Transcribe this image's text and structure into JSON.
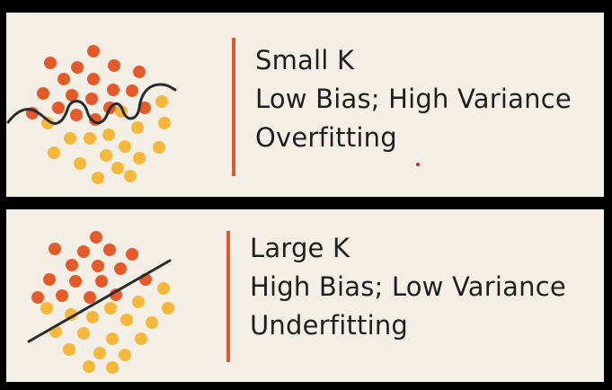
{
  "colors": {
    "background": "#000000",
    "panel": "#f3efe6",
    "accent": "#e0582f",
    "class_a": "#e55a2b",
    "class_b": "#f6b83a",
    "boundary": "#2b2b2b",
    "cursor_dot": "#d81e1e"
  },
  "panels": [
    {
      "lines": [
        "Small K",
        "Low Bias; High Variance",
        "Overfitting"
      ],
      "boundary": "wiggly"
    },
    {
      "lines": [
        "Large K",
        "High Bias; Low Variance",
        "Underfitting"
      ],
      "boundary": "straight"
    }
  ]
}
